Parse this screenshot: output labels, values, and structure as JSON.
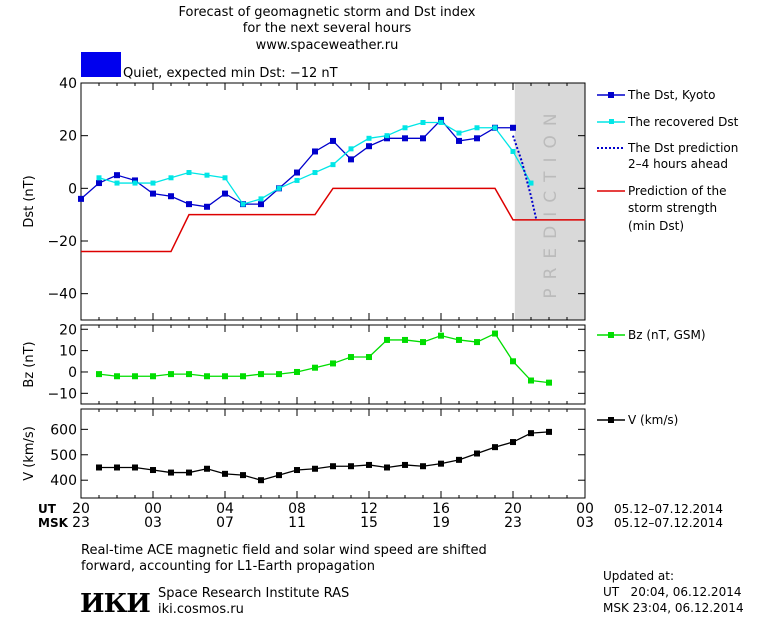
{
  "header": {
    "title_line1": "Forecast of geomagnetic storm and Dst index",
    "title_line2": "for the next several hours",
    "website": "www.spaceweather.ru",
    "status_color": "#0000ee",
    "status_text": "Quiet, expected min Dst: −12 nT"
  },
  "legend": {
    "dst_kyoto": "The Dst, Kyoto",
    "recovered": "The recovered Dst",
    "prediction_line1": "The Dst prediction",
    "prediction_line2": "2–4 hours ahead",
    "strength_line1": "Prediction of the",
    "strength_line2": "storm strength",
    "strength_line3": "(min Dst)",
    "bz": "Bz (nT, GSM)",
    "v": "V (km/s)"
  },
  "time_axis": {
    "ut_label": "UT",
    "msk_label": "MSK",
    "ut_ticks": [
      "20",
      "00",
      "04",
      "08",
      "12",
      "16",
      "20",
      "00"
    ],
    "msk_ticks": [
      "23",
      "03",
      "07",
      "11",
      "15",
      "19",
      "23",
      "03"
    ],
    "ut_range": "05.12–07.12.2014",
    "msk_range": "05.12–07.12.2014"
  },
  "prediction_label": "PREDICTION",
  "footer": {
    "note_line1": "Real-time ACE magnetic field and solar wind speed are shifted",
    "note_line2": "forward, accounting for L1-Earth propagation",
    "logo_text": "ИКИ",
    "institute": "Space Research Institute RAS",
    "institute_site": "iki.cosmos.ru",
    "updated_label": "Updated at:",
    "updated_ut": "UT   20:04, 06.12.2014",
    "updated_msk": "MSK 23:04, 06.12.2014"
  },
  "chart_data": [
    {
      "type": "line",
      "ylabel": "Dst (nT)",
      "xlim": [
        0,
        28
      ],
      "ylim": [
        -50,
        40
      ],
      "yticks": [
        -40,
        -20,
        0,
        20,
        40
      ],
      "prediction_region": [
        24.1,
        28
      ],
      "colors": {
        "dst": "#0000cc",
        "recovered": "#00e6e6",
        "prediction": "#0000cc",
        "strength": "#dd0000"
      },
      "series": [
        {
          "name": "The Dst, Kyoto",
          "x": [
            0,
            1,
            2,
            3,
            4,
            5,
            6,
            7,
            8,
            9,
            10,
            11,
            12,
            13,
            14,
            15,
            16,
            17,
            18,
            19,
            20,
            21,
            22,
            23,
            24
          ],
          "y": [
            -4,
            2,
            5,
            3,
            -2,
            -3,
            -6,
            -7,
            -2,
            -6,
            -6,
            0,
            6,
            14,
            18,
            11,
            16,
            19,
            19,
            19,
            26,
            18,
            19,
            23,
            23
          ]
        },
        {
          "name": "The recovered Dst",
          "x": [
            1,
            2,
            3,
            4,
            5,
            6,
            7,
            8,
            9,
            10,
            11,
            12,
            13,
            14,
            15,
            16,
            17,
            18,
            19,
            20,
            21,
            22,
            23,
            24,
            25
          ],
          "y": [
            4,
            2,
            2,
            2,
            4,
            6,
            5,
            4,
            -6,
            -4,
            0,
            3,
            6,
            9,
            15,
            19,
            20,
            23,
            25,
            25,
            21,
            23,
            23,
            14,
            2
          ]
        },
        {
          "name": "The Dst prediction 2–4 hours ahead",
          "x": [
            24,
            24.5,
            25,
            25.3
          ],
          "y": [
            20,
            10,
            -3,
            -12
          ]
        },
        {
          "name": "Prediction of the storm strength (min Dst)",
          "x": [
            0,
            5,
            6,
            13,
            14,
            23,
            24,
            28
          ],
          "y": [
            -24,
            -24,
            -10,
            -10,
            0,
            0,
            -12,
            -12
          ]
        }
      ]
    },
    {
      "type": "line",
      "ylabel": "Bz (nT)",
      "xlim": [
        0,
        28
      ],
      "ylim": [
        -15,
        22
      ],
      "yticks": [
        -10,
        0,
        10,
        20
      ],
      "series": [
        {
          "name": "Bz (nT, GSM)",
          "color": "#00dd00",
          "x": [
            1,
            2,
            3,
            4,
            5,
            6,
            7,
            8,
            9,
            10,
            11,
            12,
            13,
            14,
            15,
            16,
            17,
            18,
            19,
            20,
            21,
            22,
            23,
            24,
            25,
            26
          ],
          "y": [
            -1,
            -2,
            -2,
            -2,
            -1,
            -1,
            -2,
            -2,
            -2,
            -1,
            -1,
            0,
            2,
            4,
            7,
            7,
            15,
            15,
            14,
            17,
            15,
            14,
            18,
            5,
            -4,
            -5
          ]
        }
      ]
    },
    {
      "type": "line",
      "ylabel": "V (km/s)",
      "xlim": [
        0,
        28
      ],
      "ylim": [
        330,
        680
      ],
      "yticks": [
        400,
        500,
        600
      ],
      "series": [
        {
          "name": "V (km/s)",
          "color": "#000000",
          "x": [
            1,
            2,
            3,
            4,
            5,
            6,
            7,
            8,
            9,
            10,
            11,
            12,
            13,
            14,
            15,
            16,
            17,
            18,
            19,
            20,
            21,
            22,
            23,
            24,
            25,
            26
          ],
          "y": [
            450,
            450,
            450,
            440,
            430,
            430,
            445,
            425,
            420,
            400,
            420,
            440,
            445,
            455,
            455,
            460,
            450,
            460,
            455,
            465,
            480,
            505,
            530,
            550,
            585,
            590
          ]
        }
      ]
    }
  ]
}
